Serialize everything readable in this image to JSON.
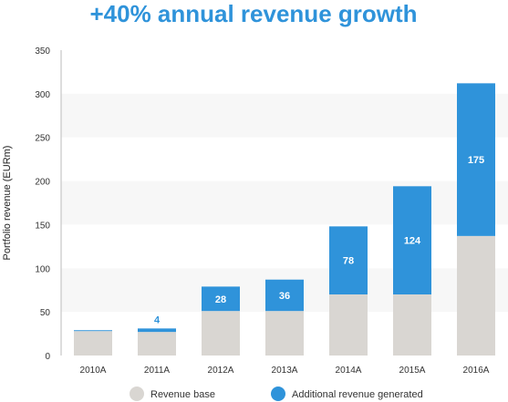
{
  "chart_data": {
    "type": "bar",
    "stacked": true,
    "title": "+40% annual revenue growth",
    "ylabel": "Portfolio revenue (EURm)",
    "xlabel": "",
    "ylim": [
      0,
      350
    ],
    "yticks": [
      0,
      50,
      100,
      150,
      200,
      250,
      300,
      350
    ],
    "categories": [
      "2010A",
      "2011A",
      "2012A",
      "2013A",
      "2014A",
      "2015A",
      "2016A"
    ],
    "series": [
      {
        "name": "Revenue base",
        "color": "#d9d6d2",
        "values": [
          28,
          27,
          51,
          51,
          70,
          70,
          137
        ]
      },
      {
        "name": "Additional revenue generated",
        "color": "#2f93da",
        "values": [
          1,
          4,
          28,
          36,
          78,
          124,
          175
        ]
      }
    ],
    "data_labels": [
      "",
      "4",
      "28",
      "36",
      "78",
      "124",
      "175"
    ],
    "grid": "alternating-bands",
    "legend": "bottom",
    "colors": {
      "title": "#2f93da",
      "accent": "#2f93da",
      "base": "#d9d6d2",
      "band": "#f7f7f7"
    }
  }
}
